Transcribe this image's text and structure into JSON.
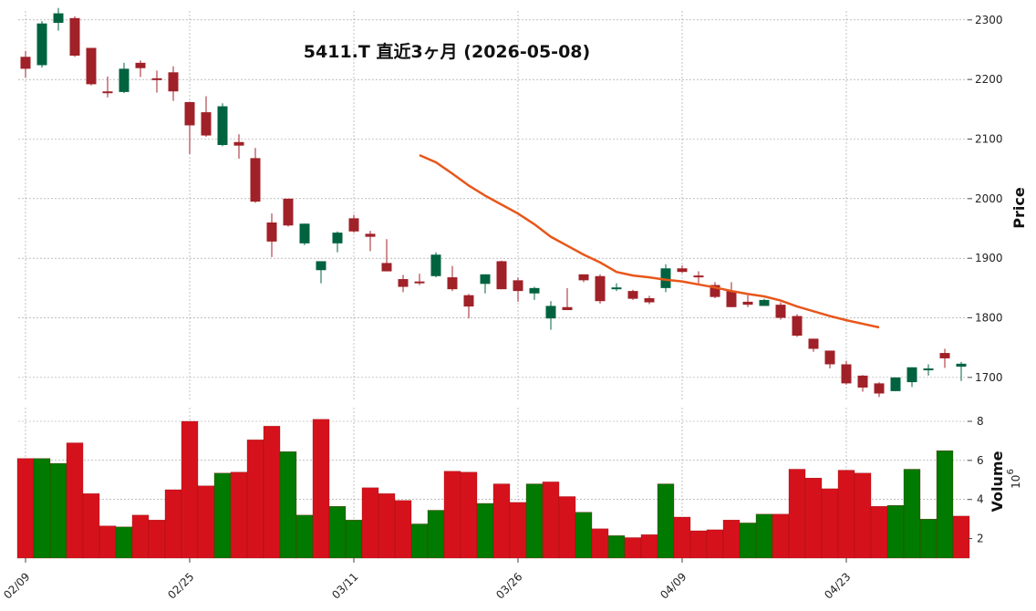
{
  "title": "5411.T 直近3ヶ月 (2026-05-08)",
  "colors": {
    "up": "#006340",
    "down": "#A02128",
    "vol_up": "#007A00",
    "vol_down": "#D5121C",
    "ma": "#E8561A",
    "grid": "#999999"
  },
  "chart_data": [
    {
      "type": "candlestick",
      "title": "5411.T 直近3ヶ月 (2026-05-08)",
      "ylabel": "Price",
      "ylim": [
        1660,
        2315
      ],
      "yticks": [
        1700,
        1800,
        1900,
        2000,
        2100,
        2200,
        2300
      ],
      "xtick_labels": [
        {
          "index": 0,
          "label": "02/09"
        },
        {
          "index": 10,
          "label": "02/25"
        },
        {
          "index": 20,
          "label": "03/11"
        },
        {
          "index": 30,
          "label": "03/26"
        },
        {
          "index": 40,
          "label": "04/09"
        },
        {
          "index": 50,
          "label": "04/23"
        }
      ],
      "grid": true,
      "ohlc": [
        [
          2238,
          2248,
          2203,
          2218
        ],
        [
          2224,
          2298,
          2220,
          2294
        ],
        [
          2295,
          2320,
          2282,
          2311
        ],
        [
          2303,
          2306,
          2238,
          2240
        ],
        [
          2253,
          2253,
          2190,
          2192
        ],
        [
          2180,
          2205,
          2170,
          2177
        ],
        [
          2179,
          2228,
          2177,
          2218
        ],
        [
          2228,
          2232,
          2204,
          2219
        ],
        [
          2202,
          2215,
          2178,
          2201
        ],
        [
          2212,
          2222,
          2164,
          2180
        ],
        [
          2162,
          2163,
          2075,
          2123
        ],
        [
          2145,
          2172,
          2104,
          2106
        ],
        [
          2090,
          2160,
          2088,
          2155
        ],
        [
          2095,
          2108,
          2067,
          2089
        ],
        [
          2068,
          2085,
          1993,
          1995
        ],
        [
          1960,
          1975,
          1902,
          1928
        ],
        [
          2000,
          2000,
          1953,
          1955
        ],
        [
          1925,
          1958,
          1922,
          1958
        ],
        [
          1880,
          1895,
          1858,
          1895
        ],
        [
          1925,
          1945,
          1910,
          1943
        ],
        [
          1967,
          1973,
          1943,
          1945
        ],
        [
          1941,
          1946,
          1912,
          1936
        ],
        [
          1892,
          1932,
          1878,
          1878
        ],
        [
          1865,
          1872,
          1843,
          1852
        ],
        [
          1861,
          1874,
          1855,
          1858
        ],
        [
          1870,
          1910,
          1868,
          1906
        ],
        [
          1868,
          1887,
          1845,
          1848
        ],
        [
          1838,
          1840,
          1799,
          1819
        ],
        [
          1857,
          1873,
          1841,
          1873
        ],
        [
          1895,
          1896,
          1848,
          1848
        ],
        [
          1863,
          1868,
          1827,
          1845
        ],
        [
          1841,
          1852,
          1830,
          1850
        ],
        [
          1799,
          1828,
          1780,
          1820
        ],
        [
          1818,
          1850,
          1813,
          1813
        ],
        [
          1873,
          1873,
          1860,
          1863
        ],
        [
          1870,
          1873,
          1824,
          1828
        ],
        [
          1849,
          1858,
          1845,
          1851
        ],
        [
          1845,
          1847,
          1830,
          1832
        ],
        [
          1833,
          1837,
          1823,
          1826
        ],
        [
          1850,
          1890,
          1843,
          1883
        ],
        [
          1883,
          1888,
          1875,
          1877
        ],
        [
          1871,
          1878,
          1858,
          1868
        ],
        [
          1855,
          1860,
          1833,
          1835
        ],
        [
          1845,
          1860,
          1818,
          1818
        ],
        [
          1827,
          1838,
          1818,
          1822
        ],
        [
          1820,
          1832,
          1820,
          1830
        ],
        [
          1822,
          1826,
          1797,
          1800
        ],
        [
          1803,
          1806,
          1768,
          1770
        ],
        [
          1765,
          1765,
          1743,
          1748
        ],
        [
          1745,
          1745,
          1715,
          1722
        ],
        [
          1722,
          1728,
          1688,
          1690
        ],
        [
          1703,
          1704,
          1676,
          1683
        ],
        [
          1690,
          1692,
          1667,
          1673
        ],
        [
          1677,
          1700,
          1677,
          1700
        ],
        [
          1692,
          1717,
          1684,
          1717
        ],
        [
          1715,
          1722,
          1703,
          1715
        ],
        [
          1741,
          1748,
          1716,
          1732
        ],
        [
          1718,
          1726,
          1694,
          1723
        ]
      ],
      "ma_start_index": 24,
      "ma_values": [
        2073,
        2061,
        2042,
        2022,
        2005,
        1990,
        1975,
        1957,
        1936,
        1921,
        1906,
        1893,
        1877,
        1871,
        1868,
        1864,
        1861,
        1856,
        1851,
        1845,
        1840,
        1836,
        1829,
        1819,
        1811,
        1803,
        1796,
        1790,
        1784
      ]
    },
    {
      "type": "bar",
      "title": "",
      "ylabel": "Volume",
      "ylabel_exponent": "10^6",
      "ylim": [
        1.0,
        8.7
      ],
      "yticks": [
        2,
        4,
        6,
        8
      ],
      "grid": true,
      "values": [
        6.1,
        6.1,
        5.85,
        6.9,
        4.3,
        2.65,
        2.6,
        3.2,
        2.95,
        4.5,
        8.0,
        4.7,
        5.35,
        5.4,
        7.05,
        7.75,
        6.45,
        3.2,
        8.1,
        3.65,
        2.95,
        4.6,
        4.3,
        3.95,
        2.75,
        3.45,
        5.45,
        5.4,
        3.8,
        4.8,
        3.85,
        4.8,
        4.9,
        4.15,
        3.35,
        2.5,
        2.15,
        2.05,
        2.2,
        4.8,
        3.1,
        2.4,
        2.45,
        2.95,
        2.8,
        3.25,
        3.25,
        5.55,
        5.1,
        4.55,
        5.5,
        5.35,
        3.65,
        3.7,
        5.55,
        3.0,
        6.5,
        3.15
      ],
      "colors": [
        "down",
        "up",
        "up",
        "down",
        "down",
        "down",
        "up",
        "down",
        "down",
        "down",
        "down",
        "down",
        "up",
        "down",
        "down",
        "down",
        "up",
        "up",
        "down",
        "up",
        "up",
        "down",
        "down",
        "down",
        "up",
        "up",
        "down",
        "down",
        "up",
        "down",
        "down",
        "up",
        "down",
        "down",
        "up",
        "down",
        "up",
        "down",
        "down",
        "up",
        "down",
        "down",
        "down",
        "down",
        "up",
        "up",
        "down",
        "down",
        "down",
        "down",
        "down",
        "down",
        "down",
        "up",
        "up",
        "up",
        "up",
        "down"
      ]
    }
  ]
}
